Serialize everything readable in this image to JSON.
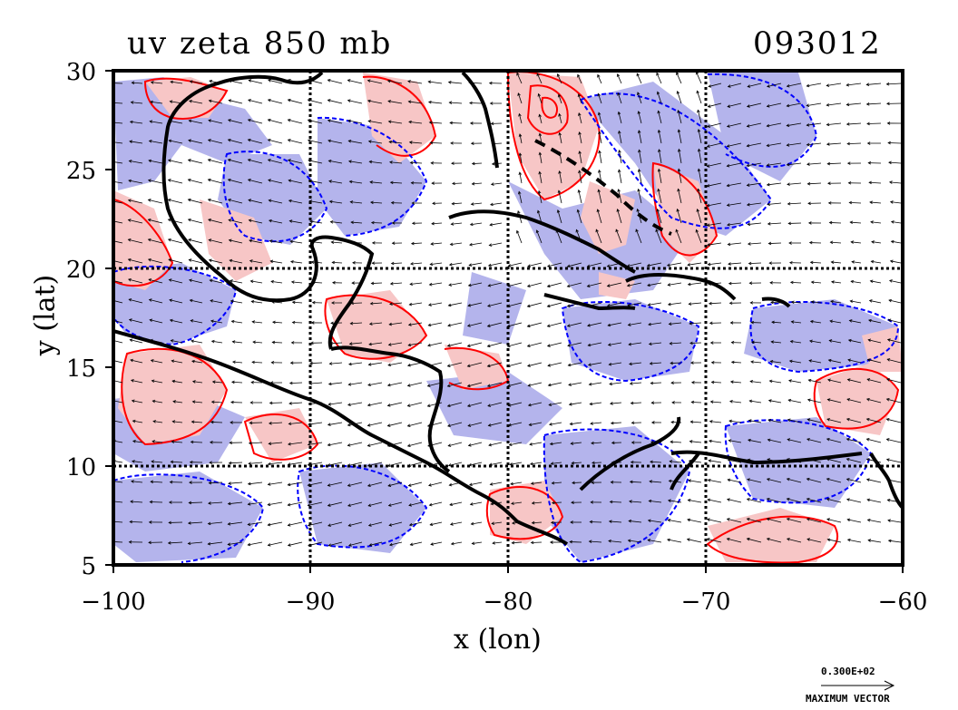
{
  "title": {
    "left": "uv zeta 850 mb",
    "right": "093012"
  },
  "axes": {
    "xlabel": "x (lon)",
    "ylabel": "y (lat)",
    "x_ticks": [
      "−100",
      "−90",
      "−80",
      "−70",
      "−60"
    ],
    "y_ticks": [
      "30",
      "25",
      "20",
      "15",
      "10",
      "5"
    ],
    "xlim": [
      -100,
      -60
    ],
    "ylim": [
      5,
      30
    ]
  },
  "legend": {
    "vector_value": "0.300E+02",
    "vector_caption": "MAXIMUM VECTOR"
  },
  "colors": {
    "positive_fill": "#f7c6c6",
    "negative_fill": "#b4b4ec",
    "positive_contour": "#ff0000",
    "negative_contour": "#0000ff",
    "coast": "#000000"
  }
}
